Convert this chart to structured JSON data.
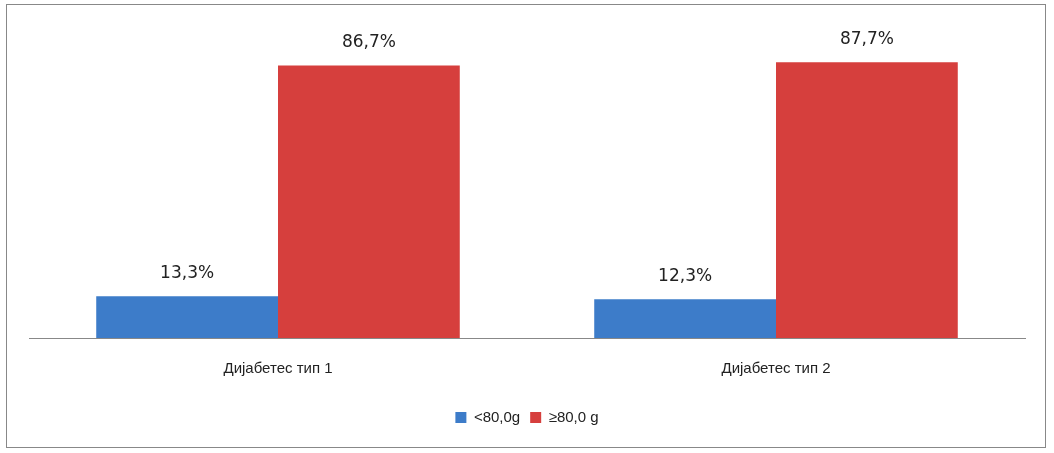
{
  "chart_data": {
    "type": "bar",
    "categories": [
      "Дијабетес тип 1",
      "Дијабетес тип 2"
    ],
    "series": [
      {
        "name": "<80,0g",
        "color": "#3d7cc9",
        "values": [
          13.3,
          12.3
        ],
        "value_labels": [
          "13,3%",
          "12,3%"
        ]
      },
      {
        "name": "≥80,0 g",
        "color": "#d63f3d",
        "values": [
          86.7,
          87.7
        ],
        "value_labels": [
          "86,7%",
          "87,7%"
        ]
      }
    ],
    "legend": "bottom",
    "grid": false
  }
}
